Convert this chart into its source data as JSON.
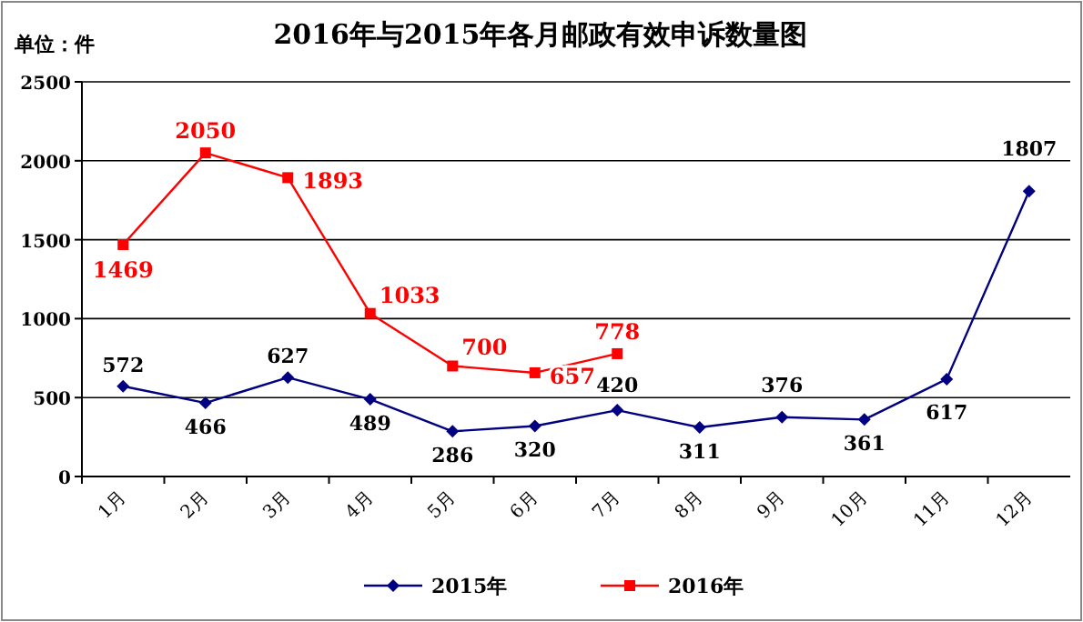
{
  "chart_data": {
    "type": "line",
    "title": "2016年与2015年各月邮政有效申诉数量图",
    "ylabel": "单位：件",
    "categories": [
      "1月",
      "2月",
      "3月",
      "4月",
      "5月",
      "6月",
      "7月",
      "8月",
      "9月",
      "10月",
      "11月",
      "12月"
    ],
    "series": [
      {
        "name": "2015年",
        "color": "#000080",
        "marker": "diamond",
        "values": [
          572,
          466,
          627,
          489,
          286,
          320,
          420,
          311,
          376,
          361,
          617,
          1807
        ]
      },
      {
        "name": "2016年",
        "color": "#ff0000",
        "marker": "square",
        "values": [
          1469,
          2050,
          1893,
          1033,
          700,
          657,
          778,
          null,
          null,
          null,
          null,
          null
        ]
      }
    ],
    "ylim": [
      0,
      2500
    ],
    "yticks": [
      0,
      500,
      1000,
      1500,
      2000,
      2500
    ],
    "grid": "y",
    "legend": "bottom",
    "data_labels": true
  }
}
